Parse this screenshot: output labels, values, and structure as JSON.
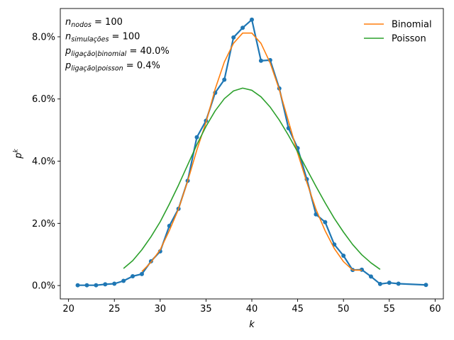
{
  "chart_data": {
    "type": "line",
    "xlabel": "k",
    "ylabel": "p^k",
    "xlim": [
      19.1,
      60.9
    ],
    "ylim": [
      -0.0043,
      0.0891
    ],
    "xticks": [
      20,
      25,
      30,
      35,
      40,
      45,
      50,
      55,
      60
    ],
    "xtick_labels": [
      "20",
      "25",
      "30",
      "35",
      "40",
      "45",
      "50",
      "55",
      "60"
    ],
    "yticks": [
      0.0,
      0.02,
      0.04,
      0.06,
      0.08
    ],
    "ytick_labels": [
      "0.0%",
      "2.0%",
      "4.0%",
      "6.0%",
      "8.0%"
    ],
    "grid": false,
    "legend_position": "top-right",
    "annotations": [
      {
        "base": "n",
        "sub": "nodos",
        "value": "= 100"
      },
      {
        "base": "n",
        "sub": "simulações",
        "value": "= 100"
      },
      {
        "base": "p",
        "sub": "ligação|binomial",
        "value": "= 40.0%"
      },
      {
        "base": "p",
        "sub": "ligação|poisson",
        "value": "= 0.4%"
      }
    ],
    "series": [
      {
        "name": "",
        "color": "#1f77b4",
        "markers": true,
        "x": [
          21,
          22,
          23,
          24,
          25,
          26,
          27,
          28,
          29,
          30,
          31,
          32,
          33,
          34,
          35,
          36,
          37,
          38,
          39,
          40,
          41,
          42,
          43,
          44,
          45,
          46,
          47,
          48,
          49,
          50,
          51,
          52,
          53,
          54,
          55,
          56,
          59
        ],
        "y": [
          0.0001,
          0.0001,
          0.0001,
          0.0004,
          0.0006,
          0.0015,
          0.003,
          0.0037,
          0.0078,
          0.011,
          0.0192,
          0.0247,
          0.0337,
          0.0477,
          0.053,
          0.062,
          0.0662,
          0.0798,
          0.0829,
          0.0855,
          0.0723,
          0.0725,
          0.0634,
          0.0506,
          0.0442,
          0.0342,
          0.0229,
          0.0204,
          0.0132,
          0.0096,
          0.005,
          0.0051,
          0.0029,
          0.0005,
          0.0009,
          0.0006,
          0.0002
        ]
      },
      {
        "name": "Binomial",
        "color": "#ff7f0e",
        "markers": false,
        "x": [
          28,
          29,
          30,
          31,
          32,
          33,
          34,
          35,
          36,
          37,
          38,
          39,
          40,
          41,
          42,
          43,
          44,
          45,
          46,
          47,
          48,
          49,
          50,
          51,
          52
        ],
        "y": [
          0.0045,
          0.0075,
          0.0115,
          0.0177,
          0.0246,
          0.0336,
          0.0436,
          0.0525,
          0.0632,
          0.0719,
          0.0779,
          0.0812,
          0.0812,
          0.0779,
          0.0716,
          0.063,
          0.0528,
          0.0426,
          0.0332,
          0.0245,
          0.0176,
          0.0119,
          0.0077,
          0.005,
          0.0049
        ]
      },
      {
        "name": "Poisson",
        "color": "#2ca02c",
        "markers": false,
        "x": [
          26,
          27,
          28,
          29,
          30,
          31,
          32,
          33,
          34,
          35,
          36,
          37,
          38,
          39,
          40,
          41,
          42,
          43,
          44,
          45,
          46,
          47,
          48,
          49,
          50,
          51,
          52,
          53,
          54
        ],
        "y": [
          0.0055,
          0.008,
          0.0115,
          0.0157,
          0.0205,
          0.0262,
          0.0323,
          0.0388,
          0.0453,
          0.0512,
          0.0562,
          0.0601,
          0.0626,
          0.0635,
          0.0628,
          0.0607,
          0.0574,
          0.0532,
          0.0483,
          0.043,
          0.0374,
          0.0319,
          0.0266,
          0.0216,
          0.0172,
          0.0132,
          0.0099,
          0.0073,
          0.0052
        ]
      }
    ]
  }
}
